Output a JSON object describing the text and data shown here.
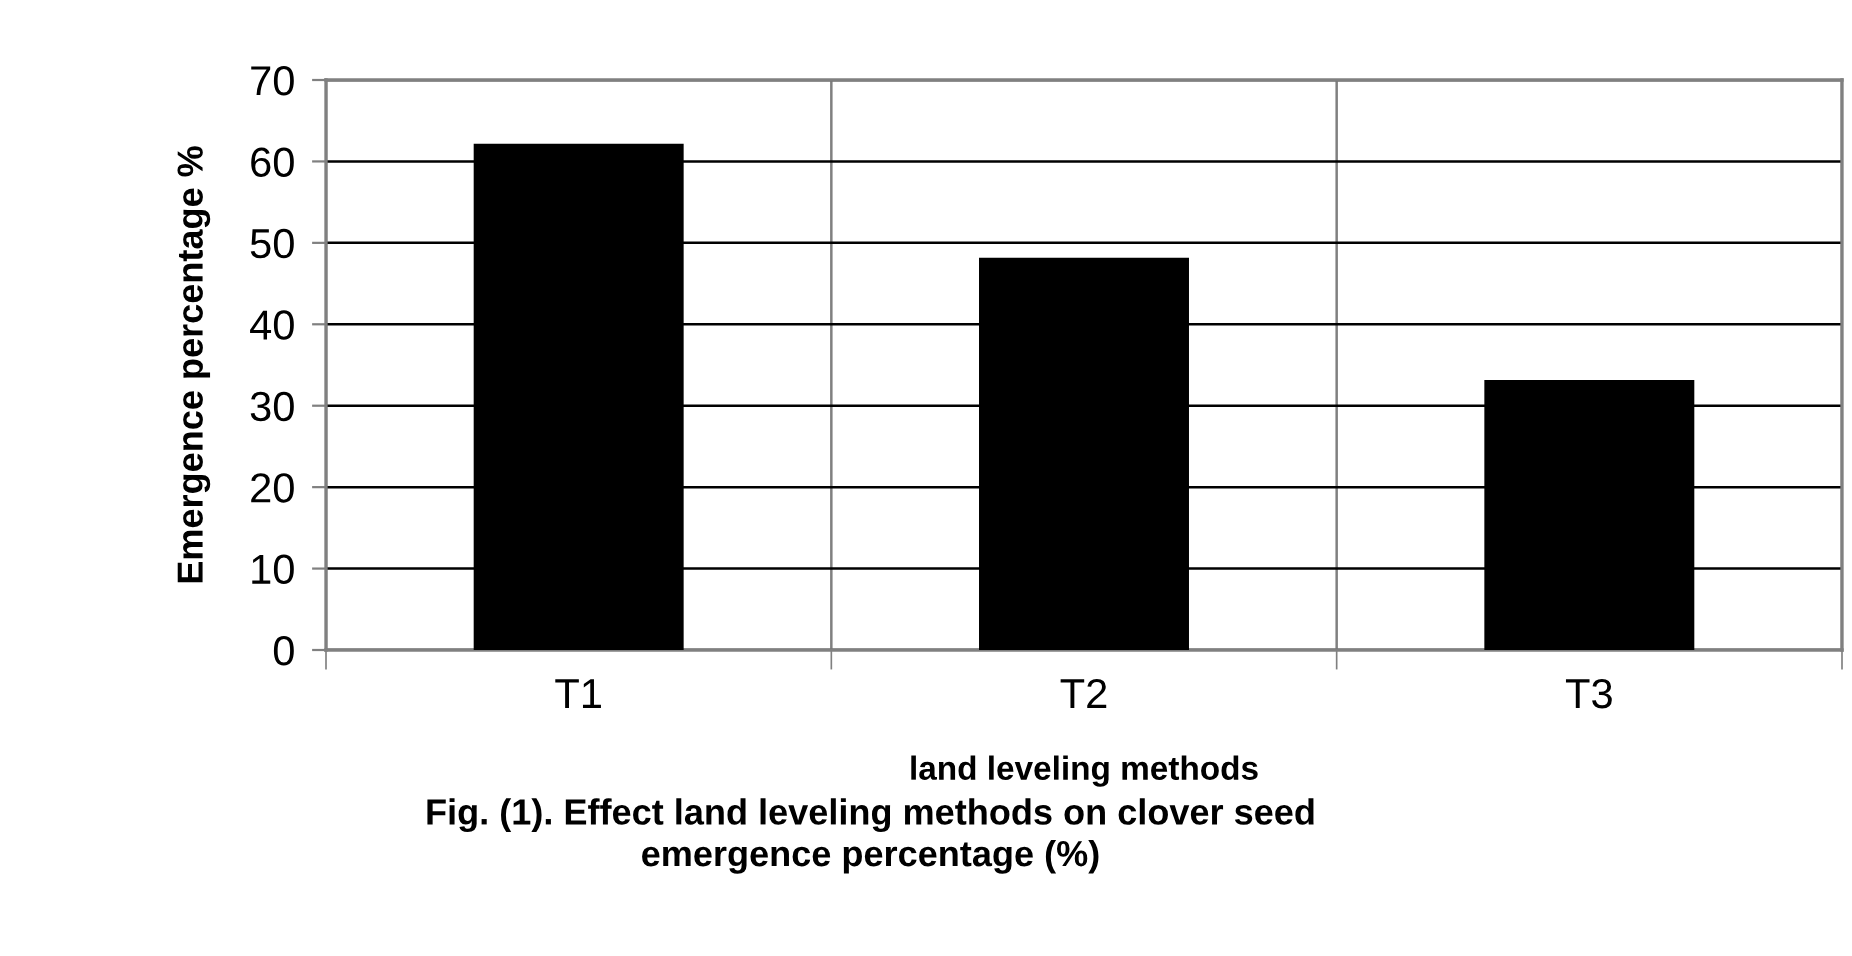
{
  "chart_data": {
    "type": "bar",
    "title": "Fig. (1). Effect land leveling methods on clover seed\nemergence percentage (%)",
    "xlabel": "land leveling methods",
    "ylabel": "Emergence percentage %",
    "categories": [
      "T1",
      "T2",
      "T3"
    ],
    "values": [
      62,
      48,
      33
    ],
    "color": "#000000",
    "ylim": [
      0,
      70
    ],
    "yticks": [
      0,
      10,
      20,
      30,
      40,
      50,
      60,
      70
    ],
    "grid": true
  }
}
